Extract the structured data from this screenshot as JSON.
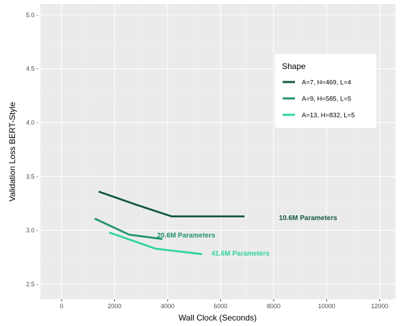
{
  "chart_data": {
    "type": "line",
    "xlabel": "Wall Clock (Seconds)",
    "ylabel": "Validation Loss BERT-Style",
    "xlim": [
      -800,
      12600
    ],
    "ylim": [
      2.36,
      5.1
    ],
    "x_ticks": [
      0,
      2000,
      4000,
      6000,
      8000,
      10000,
      12000
    ],
    "y_ticks": [
      2.5,
      3.0,
      3.5,
      4.0,
      4.5,
      5.0
    ],
    "x_tick_labels": [
      "0",
      "2000",
      "4000",
      "6000",
      "8000",
      "10000",
      "12000"
    ],
    "y_tick_labels": [
      "2.5 -",
      "3.0 -",
      "3.5 -",
      "4.0 -",
      "4.5 -",
      "5.0 -"
    ],
    "grid": true,
    "legend": {
      "title": "Shape",
      "position": "right"
    },
    "series": [
      {
        "name": "A=7, H=469, L=4",
        "color": "#13573f",
        "x": [
          1400,
          2800,
          4150,
          5500,
          6900
        ],
        "y": [
          3.36,
          3.24,
          3.13,
          3.13,
          3.13
        ],
        "annotation": {
          "text": "10.6M Parameters",
          "x": 9300,
          "y": 3.12
        }
      },
      {
        "name": "A=9, H=585, L=5",
        "color": "#22936b",
        "x": [
          1250,
          2550,
          3800
        ],
        "y": [
          3.11,
          2.96,
          2.92
        ],
        "annotation": {
          "text": "20.6M Parameters",
          "x": 4700,
          "y": 2.96
        }
      },
      {
        "name": "A=13, H=832, L=5",
        "color": "#2fd3a0",
        "x": [
          1800,
          3550,
          5300
        ],
        "y": [
          2.98,
          2.83,
          2.78
        ],
        "annotation": {
          "text": "41.6M Parameters",
          "x": 6750,
          "y": 2.79
        }
      }
    ]
  }
}
